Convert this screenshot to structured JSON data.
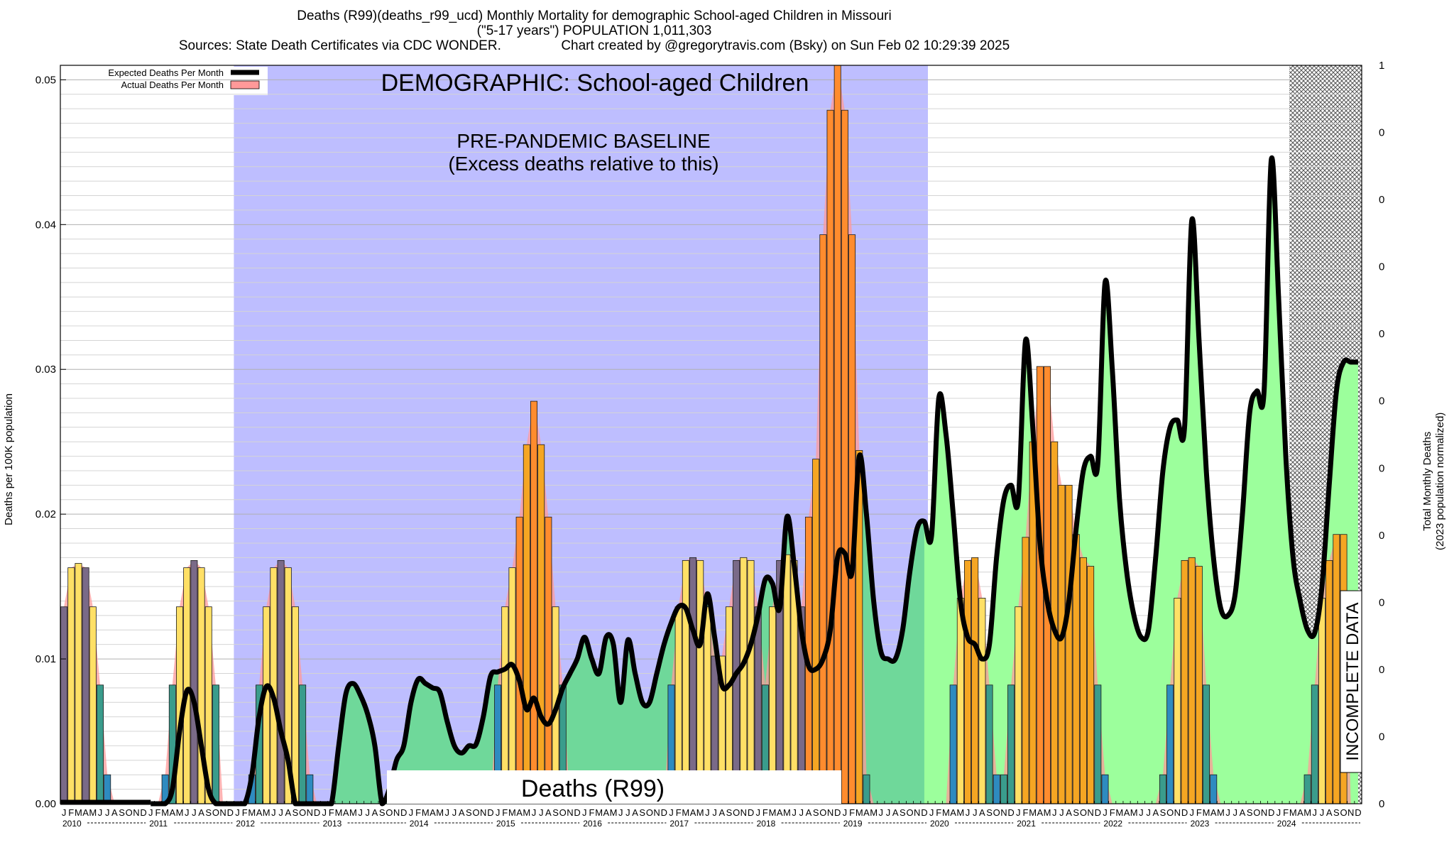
{
  "title": {
    "line1": "Deaths (R99)(deaths_r99_ucd) Monthly Mortality for demographic School-aged Children in Missouri",
    "line2": "(\"5-17 years\")  POPULATION 1,011,303",
    "line3": "Sources: State Death Certificates via CDC WONDER.                Chart created by @gregorytravis.com (Bsky) on Sun Feb 02 10:29:39 2025"
  },
  "annotations": {
    "demographic": "DEMOGRAPHIC: School-aged Children",
    "baseline_1": "PRE-PANDEMIC BASELINE",
    "baseline_2": "(Excess deaths relative to this)",
    "cause": "Deaths (R99)",
    "incomplete": "INCOMPLETE DATA"
  },
  "colors": {
    "baseline_band": "#bebeff",
    "expected_line": "#000000",
    "green_fill_pre": "#6fd89a",
    "green_fill_post": "#9cff9c",
    "actual_fill": "#ff9999",
    "bar_palette": [
      "#2e8bc0",
      "#3a9c8c",
      "#7a6a88",
      "#8a7a60",
      "#ff8c2e",
      "#f5a623",
      "#ffe066",
      "#ffd23f"
    ]
  },
  "chart_data": {
    "type": "bar",
    "title": "Deaths (R99)(deaths_r99_ucd) Monthly Mortality for demographic School-aged Children in Missouri",
    "ylabel": "Deaths per 100K population",
    "y2label": [
      "Total Monthly Deaths",
      "(2023 population normalized)"
    ],
    "ylim": [
      0,
      0.051
    ],
    "yticks": [
      "0.00",
      "0.01",
      "0.02",
      "0.03",
      "0.04",
      "0.05"
    ],
    "y2ticks": [
      "1",
      "0",
      "0",
      "0",
      "0",
      "0",
      "0",
      "0",
      "0",
      "0",
      "0",
      "0"
    ],
    "month_letters": [
      "J",
      "F",
      "M",
      "A",
      "M",
      "J",
      "J",
      "A",
      "S",
      "O",
      "N",
      "D"
    ],
    "years": [
      "2010",
      "2011",
      "2012",
      "2013",
      "2014",
      "2015",
      "2016",
      "2017",
      "2018",
      "2019",
      "2020",
      "2021",
      "2022",
      "2023",
      "2024"
    ],
    "baseline_period": [
      "2012-01",
      "2019-12"
    ],
    "incomplete_period": [
      "2024-04",
      "2024-12"
    ],
    "legend": {
      "position": "top-left",
      "entries": [
        "Expected Deaths Per Month",
        "Actual Deaths Per Month"
      ]
    },
    "grid": true,
    "series": [
      {
        "name": "Actual Deaths Per Month",
        "values": [
          0.0136,
          0.0163,
          0.0166,
          0.0163,
          0.0136,
          0.0082,
          0.002,
          0,
          0,
          0,
          0,
          0,
          0,
          0,
          0.002,
          0.0082,
          0.0136,
          0.0163,
          0.0168,
          0.0163,
          0.0136,
          0.0082,
          0,
          0,
          0,
          0,
          0.002,
          0.0082,
          0.0136,
          0.0163,
          0.0168,
          0.0163,
          0.0136,
          0.0082,
          0.002,
          0,
          0,
          0,
          0,
          0,
          0,
          0,
          0,
          0,
          0,
          0,
          0,
          0,
          0,
          0,
          0,
          0,
          0,
          0,
          0,
          0,
          0,
          0,
          0,
          0,
          0.0082,
          0.0136,
          0.0163,
          0.0198,
          0.0248,
          0.0278,
          0.0248,
          0.0198,
          0.0136,
          0.0082,
          0,
          0,
          0,
          0,
          0,
          0,
          0,
          0,
          0,
          0,
          0,
          0,
          0,
          0,
          0.0082,
          0.0136,
          0.0168,
          0.017,
          0.0168,
          0.0136,
          0.0102,
          0.0102,
          0.0136,
          0.0168,
          0.017,
          0.0168,
          0.0136,
          0.0082,
          0.0136,
          0.0168,
          0.0172,
          0.0168,
          0.0136,
          0.0198,
          0.0238,
          0.0393,
          0.0479,
          0.051,
          0.0479,
          0.0393,
          0.0244,
          0.002,
          0,
          0,
          0,
          0,
          0,
          0,
          0,
          0,
          0,
          0,
          0,
          0.0082,
          0.0142,
          0.0168,
          0.017,
          0.0142,
          0.0082,
          0.002,
          0.002,
          0.0082,
          0.0136,
          0.0184,
          0.025,
          0.0302,
          0.0302,
          0.025,
          0.022,
          0.022,
          0.0186,
          0.017,
          0.0164,
          0.0082,
          0.002,
          0,
          0,
          0,
          0,
          0,
          0,
          0,
          0.002,
          0.0082,
          0.0142,
          0.0168,
          0.017,
          0.0164,
          0.0082,
          0.002,
          0,
          0,
          0,
          0,
          0,
          0,
          0,
          0,
          0,
          0,
          0,
          0,
          0.002,
          0.0082,
          0.0142,
          0.0168,
          0.0186,
          0.0186,
          0,
          0
        ]
      },
      {
        "name": "Expected Deaths Per Month",
        "values": [
          0,
          0,
          0,
          0.001,
          0.005,
          0.0078,
          0.007,
          0.004,
          0.001,
          0,
          0,
          0,
          0,
          0,
          0.002,
          0.006,
          0.0081,
          0.0073,
          0.005,
          0.003,
          0,
          0,
          0,
          0,
          0,
          0,
          0.004,
          0.0076,
          0.0083,
          0.0075,
          0.0062,
          0.004,
          0,
          0.001,
          0.003,
          0.004,
          0.007,
          0.0086,
          0.0083,
          0.008,
          0.0077,
          0.0057,
          0.004,
          0.0035,
          0.004,
          0.0041,
          0.006,
          0.0088,
          0.0091,
          0.0093,
          0.0096,
          0.0085,
          0.0065,
          0.0073,
          0.006,
          0.0055,
          0.0065,
          0.008,
          0.009,
          0.01,
          0.0115,
          0.01,
          0.009,
          0.0115,
          0.011,
          0.007,
          0.0113,
          0.009,
          0.007,
          0.007,
          0.009,
          0.011,
          0.0125,
          0.0136,
          0.0135,
          0.012,
          0.011,
          0.0145,
          0.0115,
          0.0082,
          0.0082,
          0.009,
          0.0097,
          0.011,
          0.013,
          0.0155,
          0.0152,
          0.0135,
          0.0198,
          0.0165,
          0.012,
          0.0095,
          0.0093,
          0.01,
          0.012,
          0.017,
          0.0173,
          0.016,
          0.024,
          0.02,
          0.014,
          0.0105,
          0.01,
          0.01,
          0.012,
          0.016,
          0.019,
          0.0195,
          0.0185,
          0.028,
          0.0255,
          0.02,
          0.014,
          0.0115,
          0.011,
          0.01,
          0.011,
          0.017,
          0.021,
          0.022,
          0.021,
          0.032,
          0.026,
          0.018,
          0.014,
          0.012,
          0.0115,
          0.014,
          0.019,
          0.023,
          0.024,
          0.0235,
          0.036,
          0.03,
          0.021,
          0.016,
          0.013,
          0.0115,
          0.012,
          0.017,
          0.023,
          0.026,
          0.0265,
          0.026,
          0.0403,
          0.032,
          0.023,
          0.017,
          0.0135,
          0.013,
          0.0145,
          0.02,
          0.027,
          0.0285,
          0.0285,
          0.0445,
          0.035,
          0.024,
          0.017,
          0.014,
          0.012,
          0.0118,
          0.015,
          0.022,
          0.0285,
          0.0305,
          0.0305,
          0.0305
        ],
        "start": "2011-01"
      }
    ]
  }
}
